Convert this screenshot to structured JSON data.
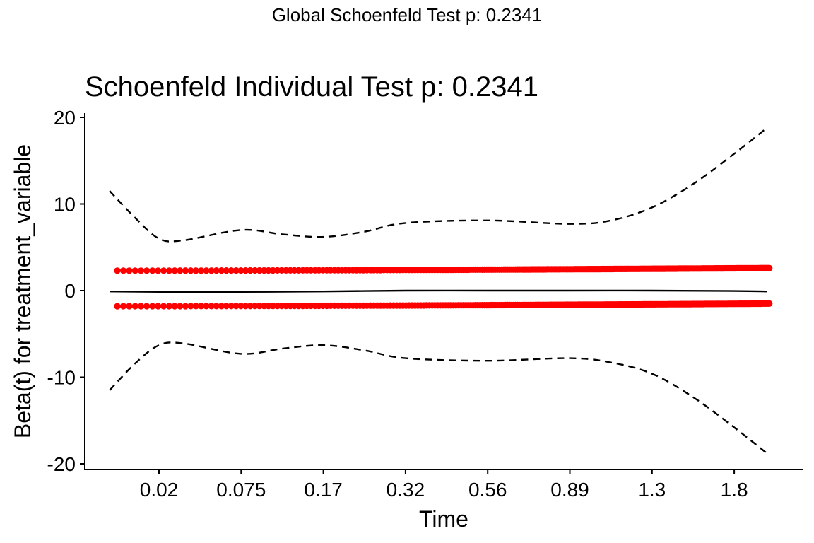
{
  "global_title": "Global Schoenfeld Test p: 0.2341",
  "chart_data": {
    "type": "scatter",
    "title": "Schoenfeld Individual Test p: 0.2341",
    "xlabel": "Time",
    "ylabel": "Beta(t) for treatment_variable",
    "x_scale": "km-transformed (ticks labeled in time units)",
    "x_ticks": [
      "0.02",
      "0.075",
      "0.17",
      "0.32",
      "0.56",
      "0.89",
      "1.3",
      "1.8"
    ],
    "y_ticks": [
      -20,
      -10,
      0,
      10,
      20
    ],
    "ylim": [
      -20.5,
      20.5
    ],
    "grid": false,
    "colors": {
      "points": "#ff0000",
      "lines": "#000000"
    },
    "residual_bands": [
      {
        "name": "upper residuals",
        "start": 2.3,
        "end": 2.6
      },
      {
        "name": "lower residuals",
        "start": -1.8,
        "end": -1.5
      }
    ],
    "fit_line": {
      "tick_index": [
        -0.6,
        0,
        1,
        2,
        3,
        4,
        5,
        6,
        7,
        7.4
      ],
      "values": [
        -0.1,
        -0.15,
        -0.15,
        -0.1,
        0,
        0,
        0,
        0,
        -0.05,
        -0.1
      ]
    },
    "upper_ci": {
      "tick_index": [
        -0.6,
        -0.3,
        0,
        0.3,
        1,
        1.5,
        2,
        2.5,
        3,
        4,
        5,
        5.5,
        6,
        6.5,
        7,
        7.4
      ],
      "values": [
        11.5,
        8.5,
        6.0,
        5.8,
        7.0,
        6.5,
        6.2,
        6.8,
        7.8,
        8.1,
        7.7,
        8.1,
        9.6,
        12.3,
        15.8,
        18.8
      ]
    },
    "lower_ci": {
      "tick_index": [
        -0.6,
        -0.3,
        0,
        0.3,
        1,
        1.5,
        2,
        2.5,
        3,
        4,
        5,
        5.5,
        6,
        6.5,
        7,
        7.4
      ],
      "values": [
        -11.5,
        -8.5,
        -6.3,
        -6.1,
        -7.3,
        -6.7,
        -6.3,
        -6.9,
        -7.8,
        -8.1,
        -7.8,
        -8.3,
        -9.6,
        -12.3,
        -15.8,
        -18.8
      ]
    }
  }
}
